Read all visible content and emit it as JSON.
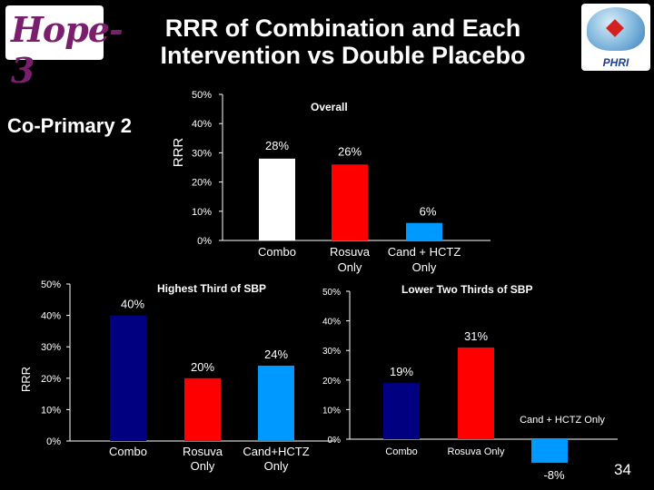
{
  "slide": {
    "title_line1": "RRR of Combination and Each",
    "title_line2": "Intervention vs Double Placebo",
    "co_primary_label": "Co-Primary 2",
    "page_number": "34",
    "logo_left_text": "Hope-3",
    "logo_right_text": "PHRI"
  },
  "colors": {
    "combo_overall": "#ffffff",
    "combo_subgroup": "#000080",
    "rosuva": "#ff0000",
    "cand_hctz": "#0099ff",
    "background": "#000000"
  },
  "chart_data": [
    {
      "id": "overall",
      "type": "bar",
      "title": "Overall",
      "ylabel": "RRR",
      "xlabel": "",
      "ylim": [
        0,
        50
      ],
      "yticks": [
        "0%",
        "10%",
        "20%",
        "30%",
        "40%",
        "50%"
      ],
      "categories": [
        [
          "Combo"
        ],
        [
          "Rosuva",
          "Only"
        ],
        [
          "Cand + HCTZ",
          "Only"
        ]
      ],
      "values": [
        28,
        26,
        6
      ],
      "value_labels": [
        "28%",
        "26%",
        "6%"
      ],
      "grid": false
    },
    {
      "id": "highest",
      "type": "bar",
      "title": "Highest Third of SBP",
      "ylabel": "RRR",
      "xlabel": "",
      "ylim": [
        0,
        50
      ],
      "yticks": [
        "0%",
        "10%",
        "20%",
        "30%",
        "40%",
        "50%"
      ],
      "categories": [
        [
          "Combo"
        ],
        [
          "Rosuva",
          "Only"
        ],
        [
          "Cand+HCTZ",
          "Only"
        ]
      ],
      "values": [
        40,
        20,
        24
      ],
      "value_labels": [
        "40%",
        "20%",
        "24%"
      ],
      "grid": false
    },
    {
      "id": "lower",
      "type": "bar",
      "title": "Lower Two Thirds of SBP",
      "ylabel": "",
      "xlabel": "",
      "ylim": [
        0,
        50
      ],
      "yticks": [
        "0%",
        "10%",
        "20%",
        "30%",
        "40%",
        "50%"
      ],
      "categories": [
        [
          "Combo"
        ],
        [
          "Rosuva Only"
        ],
        [
          "Cand + HCTZ Only"
        ]
      ],
      "values": [
        19,
        31,
        -8
      ],
      "value_labels": [
        "19%",
        "31%",
        "-8%"
      ],
      "grid": false
    }
  ]
}
